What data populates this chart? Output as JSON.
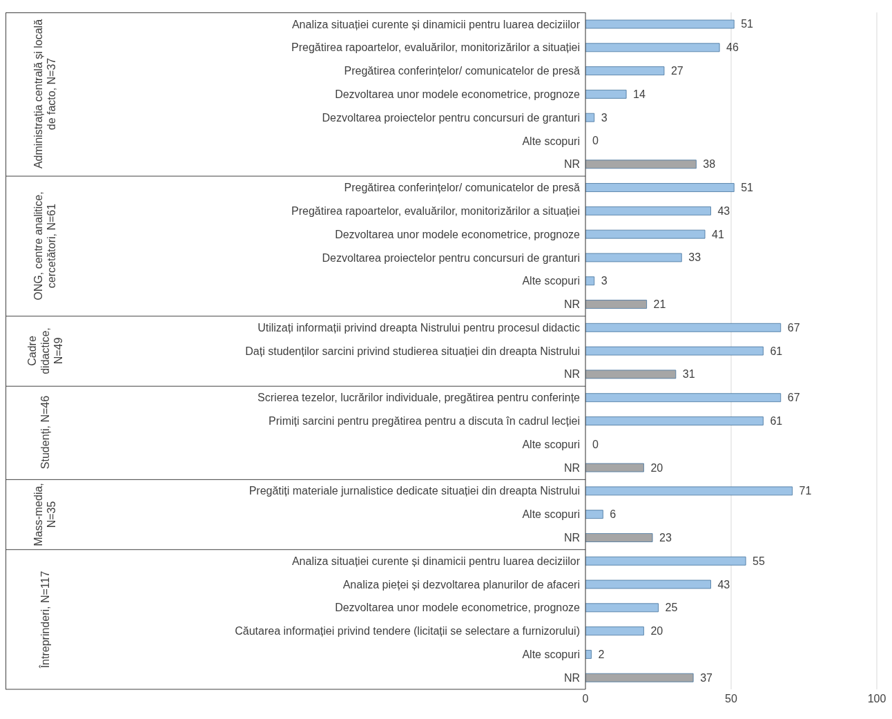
{
  "chart_data": {
    "type": "bar",
    "orientation": "horizontal",
    "categories": [
      "Analiza situației curente și dinamicii pentru luarea deciziilor",
      "Pregătirea rapoartelor, evaluărilor, monitorizărilor a situației",
      "Pregătirea conferințelor/ comunicatelor de presă",
      "Dezvoltarea unor modele econometrice, prognoze",
      "Dezvoltarea proiectelor pentru concursuri de granturi",
      "Alte scopuri",
      "NR",
      "Pregătirea conferințelor/ comunicatelor de presă",
      "Pregătirea rapoartelor, evaluărilor, monitorizărilor a situației",
      "Dezvoltarea unor modele econometrice, prognoze",
      "Dezvoltarea proiectelor pentru concursuri de granturi",
      "Alte scopuri",
      "NR",
      "Utilizați informații privind dreapta Nistrului pentru procesul didactic",
      "Dați studenților  sarcini privind studierea situației din dreapta Nistrului",
      "NR",
      "Scrierea tezelor, lucrărilor individuale, pregătirea pentru conferințe",
      "Primiți sarcini pentru pregătirea pentru a discuta în cadrul lecției",
      "Alte scopuri",
      "NR",
      "Pregătiți materiale jurnalistice dedicate situației din dreapta Nistrului",
      "Alte scopuri",
      "NR",
      "Analiza situației curente și dinamicii pentru luarea deciziilor",
      "Analiza pieței și dezvoltarea planurilor de afaceri",
      "Dezvoltarea unor modele econometrice, prognoze",
      "Căutarea informației privind tendere (licitații se selectare a furnizorului)",
      "Alte scopuri",
      "NR"
    ],
    "values": [
      51,
      46,
      27,
      14,
      3,
      0,
      38,
      51,
      43,
      41,
      33,
      3,
      21,
      67,
      61,
      31,
      67,
      61,
      0,
      20,
      71,
      6,
      23,
      55,
      43,
      25,
      20,
      2,
      37
    ],
    "colors": [
      "#9dc3e6",
      "#9dc3e6",
      "#9dc3e6",
      "#9dc3e6",
      "#9dc3e6",
      "#9dc3e6",
      "#a6a6a6",
      "#9dc3e6",
      "#9dc3e6",
      "#9dc3e6",
      "#9dc3e6",
      "#9dc3e6",
      "#a6a6a6",
      "#9dc3e6",
      "#9dc3e6",
      "#a6a6a6",
      "#9dc3e6",
      "#9dc3e6",
      "#9dc3e6",
      "#a6a6a6",
      "#9dc3e6",
      "#9dc3e6",
      "#a6a6a6",
      "#9dc3e6",
      "#9dc3e6",
      "#9dc3e6",
      "#9dc3e6",
      "#9dc3e6",
      "#a6a6a6"
    ],
    "annotations": [
      "Administrația centrală și locală de facto, N=37",
      "ONG, centre analitice, cercetători, N=61",
      "Cadre didactice, N=49",
      "Studenți, N=46",
      "Mass-media, N=35",
      "Întreprinderi, N=117"
    ],
    "xlim": [
      0,
      100
    ],
    "xticks": [
      0,
      50,
      100
    ],
    "grid": "x",
    "data_labels": true
  }
}
